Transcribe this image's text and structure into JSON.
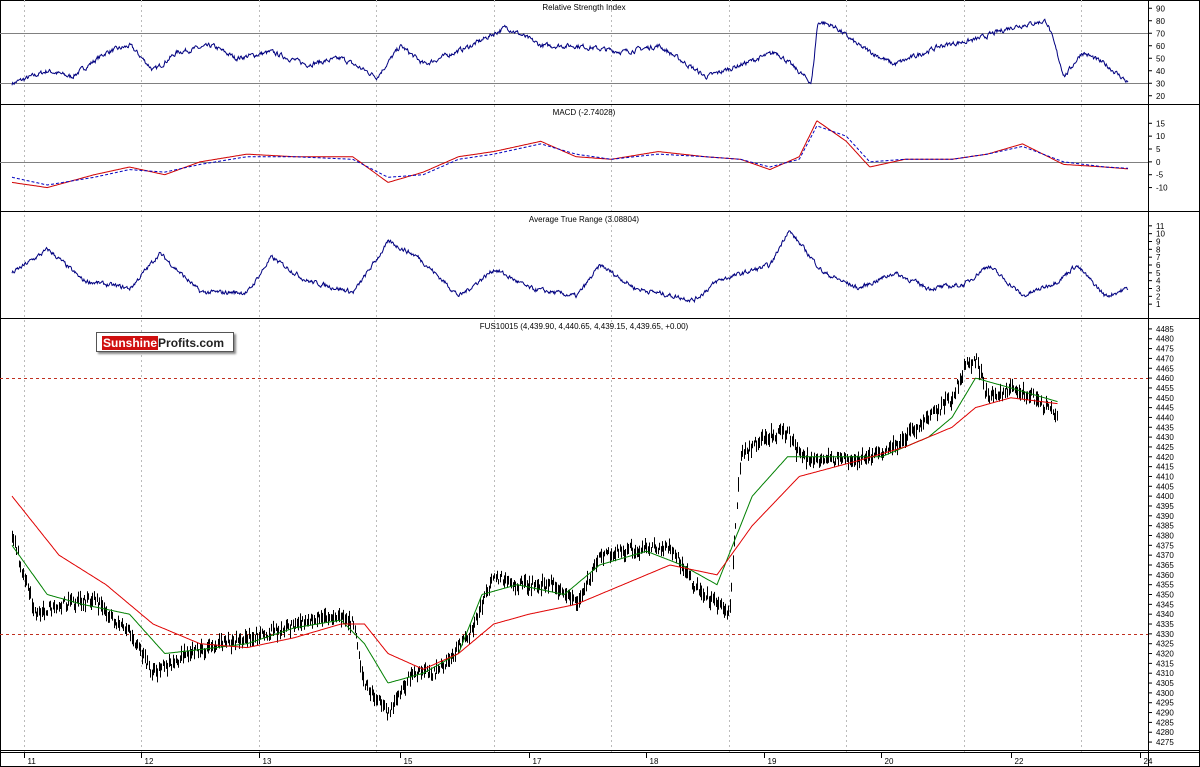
{
  "chart_data": [
    {
      "type": "line",
      "title": "Relative Strength Index",
      "ylim": [
        15,
        95
      ],
      "yticks": [
        "90",
        "80",
        "70",
        "60",
        "50",
        "40",
        "30",
        "20"
      ],
      "reference_lines": [
        70,
        30
      ],
      "series": [
        {
          "name": "RSI",
          "color": "#000080",
          "keypoints": [
            [
              0,
              30
            ],
            [
              0.3,
              40
            ],
            [
              0.5,
              35
            ],
            [
              0.8,
              55
            ],
            [
              1.0,
              60
            ],
            [
              1.2,
              40
            ],
            [
              1.4,
              55
            ],
            [
              1.7,
              60
            ],
            [
              1.9,
              50
            ],
            [
              2.2,
              55
            ],
            [
              2.5,
              45
            ],
            [
              2.8,
              50
            ],
            [
              3.1,
              35
            ],
            [
              3.3,
              60
            ],
            [
              3.5,
              45
            ],
            [
              3.9,
              60
            ],
            [
              4.2,
              75
            ],
            [
              4.5,
              60
            ],
            [
              4.8,
              60
            ],
            [
              5.2,
              55
            ],
            [
              5.5,
              60
            ],
            [
              5.9,
              35
            ],
            [
              6.2,
              45
            ],
            [
              6.5,
              55
            ],
            [
              6.8,
              30
            ],
            [
              6.85,
              80
            ],
            [
              7.0,
              75
            ],
            [
              7.2,
              60
            ],
            [
              7.5,
              45
            ],
            [
              7.9,
              60
            ],
            [
              8.2,
              65
            ],
            [
              8.5,
              75
            ],
            [
              8.8,
              80
            ],
            [
              8.95,
              35
            ],
            [
              9.1,
              55
            ],
            [
              9.3,
              45
            ],
            [
              9.5,
              30
            ]
          ]
        }
      ]
    },
    {
      "type": "line",
      "title": "MACD (-2.74028)",
      "ylim": [
        -16,
        19
      ],
      "yticks": [
        "15",
        "10",
        "5",
        "0",
        "-5",
        "-10"
      ],
      "reference_lines": [
        0
      ],
      "series": [
        {
          "name": "MACD",
          "color": "#d00000",
          "keypoints": [
            [
              0,
              -8
            ],
            [
              0.3,
              -10
            ],
            [
              0.7,
              -5
            ],
            [
              1.0,
              -2
            ],
            [
              1.3,
              -5
            ],
            [
              1.6,
              0
            ],
            [
              2.0,
              3
            ],
            [
              2.4,
              2
            ],
            [
              2.9,
              2
            ],
            [
              3.2,
              -8
            ],
            [
              3.5,
              -4
            ],
            [
              3.8,
              2
            ],
            [
              4.1,
              4
            ],
            [
              4.5,
              8
            ],
            [
              4.8,
              2
            ],
            [
              5.1,
              1
            ],
            [
              5.5,
              4
            ],
            [
              5.9,
              2
            ],
            [
              6.2,
              1
            ],
            [
              6.45,
              -3
            ],
            [
              6.7,
              2
            ],
            [
              6.85,
              16
            ],
            [
              7.1,
              8
            ],
            [
              7.3,
              -2
            ],
            [
              7.6,
              1
            ],
            [
              8.0,
              1
            ],
            [
              8.3,
              3
            ],
            [
              8.6,
              7
            ],
            [
              8.95,
              -1
            ],
            [
              9.3,
              -2
            ],
            [
              9.5,
              -2.74
            ]
          ]
        },
        {
          "name": "Signal",
          "color": "#0000c0",
          "dashed": true,
          "keypoints": [
            [
              0,
              -6
            ],
            [
              0.3,
              -9
            ],
            [
              0.7,
              -6
            ],
            [
              1.0,
              -3
            ],
            [
              1.3,
              -4
            ],
            [
              1.6,
              -1
            ],
            [
              2.0,
              2
            ],
            [
              2.4,
              2
            ],
            [
              2.9,
              1
            ],
            [
              3.2,
              -6
            ],
            [
              3.5,
              -5
            ],
            [
              3.8,
              1
            ],
            [
              4.1,
              3
            ],
            [
              4.5,
              7
            ],
            [
              4.8,
              3
            ],
            [
              5.1,
              1
            ],
            [
              5.5,
              3
            ],
            [
              5.9,
              2
            ],
            [
              6.2,
              1
            ],
            [
              6.45,
              -2
            ],
            [
              6.7,
              1
            ],
            [
              6.85,
              14
            ],
            [
              7.1,
              10
            ],
            [
              7.3,
              0
            ],
            [
              7.6,
              1
            ],
            [
              8.0,
              1
            ],
            [
              8.3,
              3
            ],
            [
              8.6,
              6
            ],
            [
              8.95,
              0
            ],
            [
              9.3,
              -2
            ],
            [
              9.5,
              -2.5
            ]
          ]
        }
      ]
    },
    {
      "type": "line",
      "title": "Average True Range (3.08804)",
      "ylim": [
        0,
        12
      ],
      "yticks": [
        "11",
        "10",
        "9",
        "8",
        "7",
        "6",
        "5",
        "4",
        "3",
        "2",
        "1"
      ],
      "series": [
        {
          "name": "ATR",
          "color": "#000080",
          "keypoints": [
            [
              0,
              5
            ],
            [
              0.3,
              8
            ],
            [
              0.6,
              4
            ],
            [
              1.0,
              3
            ],
            [
              1.25,
              7.5
            ],
            [
              1.6,
              2.5
            ],
            [
              2.0,
              2.5
            ],
            [
              2.2,
              7
            ],
            [
              2.5,
              4
            ],
            [
              2.9,
              2.5
            ],
            [
              3.2,
              9
            ],
            [
              3.45,
              7
            ],
            [
              3.8,
              2
            ],
            [
              4.1,
              5.5
            ],
            [
              4.4,
              3
            ],
            [
              4.8,
              2
            ],
            [
              5.0,
              6
            ],
            [
              5.3,
              3
            ],
            [
              5.8,
              1.5
            ],
            [
              6.0,
              4
            ],
            [
              6.45,
              6
            ],
            [
              6.6,
              10.5
            ],
            [
              6.9,
              5
            ],
            [
              7.2,
              3
            ],
            [
              7.5,
              5
            ],
            [
              7.8,
              3
            ],
            [
              8.1,
              3.5
            ],
            [
              8.3,
              6
            ],
            [
              8.6,
              2
            ],
            [
              8.9,
              4
            ],
            [
              9.05,
              6
            ],
            [
              9.3,
              2
            ],
            [
              9.5,
              3.09
            ]
          ]
        }
      ]
    },
    {
      "type": "line",
      "title": "FUS10015 (4,439.90, 4,440.65, 4,439.15, 4,439.65, +0.00)",
      "ylim": [
        4273,
        4488
      ],
      "yticks": [
        "4485",
        "4480",
        "4475",
        "4470",
        "4465",
        "4460",
        "4455",
        "4450",
        "4445",
        "4440",
        "4435",
        "4430",
        "4425",
        "4420",
        "4415",
        "4410",
        "4405",
        "4400",
        "4395",
        "4390",
        "4385",
        "4380",
        "4375",
        "4370",
        "4365",
        "4360",
        "4355",
        "4350",
        "4345",
        "4340",
        "4335",
        "4330",
        "4325",
        "4320",
        "4315",
        "4310",
        "4305",
        "4300",
        "4295",
        "4290",
        "4285",
        "4280",
        "4275"
      ],
      "reference_lines": [
        4460,
        4330
      ],
      "x_labels": [
        "11",
        "12",
        "13",
        "15",
        "17",
        "18",
        "19",
        "20",
        "22",
        "24"
      ],
      "series": [
        {
          "name": "Price",
          "color": "#000000",
          "keypoints": [
            [
              0,
              4380
            ],
            [
              0.2,
              4340
            ],
            [
              0.4,
              4345
            ],
            [
              0.7,
              4347
            ],
            [
              1.0,
              4330
            ],
            [
              1.2,
              4310
            ],
            [
              1.5,
              4320
            ],
            [
              1.8,
              4325
            ],
            [
              2.0,
              4328
            ],
            [
              2.3,
              4332
            ],
            [
              2.7,
              4340
            ],
            [
              2.9,
              4335
            ],
            [
              3.0,
              4305
            ],
            [
              3.2,
              4290
            ],
            [
              3.4,
              4310
            ],
            [
              3.6,
              4310
            ],
            [
              3.9,
              4330
            ],
            [
              4.1,
              4360
            ],
            [
              4.3,
              4355
            ],
            [
              4.6,
              4355
            ],
            [
              4.8,
              4345
            ],
            [
              5.0,
              4370
            ],
            [
              5.3,
              4373
            ],
            [
              5.6,
              4375
            ],
            [
              5.8,
              4355
            ],
            [
              6.0,
              4345
            ],
            [
              6.1,
              4340
            ],
            [
              6.2,
              4420
            ],
            [
              6.4,
              4430
            ],
            [
              6.6,
              4433
            ],
            [
              6.7,
              4420
            ],
            [
              7.0,
              4418
            ],
            [
              7.3,
              4420
            ],
            [
              7.5,
              4425
            ],
            [
              7.8,
              4440
            ],
            [
              8.0,
              4450
            ],
            [
              8.1,
              4465
            ],
            [
              8.2,
              4470
            ],
            [
              8.3,
              4450
            ],
            [
              8.5,
              4455
            ],
            [
              8.7,
              4450
            ],
            [
              8.9,
              4440
            ]
          ]
        },
        {
          "name": "Short MA",
          "color": "#008000",
          "keypoints": [
            [
              0,
              4375
            ],
            [
              0.3,
              4350
            ],
            [
              0.6,
              4345
            ],
            [
              1.0,
              4340
            ],
            [
              1.3,
              4320
            ],
            [
              1.6,
              4322
            ],
            [
              2.0,
              4325
            ],
            [
              2.4,
              4333
            ],
            [
              2.8,
              4337
            ],
            [
              3.0,
              4325
            ],
            [
              3.2,
              4305
            ],
            [
              3.5,
              4310
            ],
            [
              3.8,
              4320
            ],
            [
              4.0,
              4350
            ],
            [
              4.3,
              4355
            ],
            [
              4.7,
              4350
            ],
            [
              5.0,
              4365
            ],
            [
              5.4,
              4372
            ],
            [
              5.7,
              4365
            ],
            [
              6.0,
              4355
            ],
            [
              6.3,
              4400
            ],
            [
              6.6,
              4420
            ],
            [
              7.0,
              4420
            ],
            [
              7.4,
              4420
            ],
            [
              7.8,
              4430
            ],
            [
              8.0,
              4440
            ],
            [
              8.2,
              4460
            ],
            [
              8.5,
              4455
            ],
            [
              8.9,
              4448
            ]
          ]
        },
        {
          "name": "Long MA",
          "color": "#e00000",
          "keypoints": [
            [
              0,
              4400
            ],
            [
              0.4,
              4370
            ],
            [
              0.8,
              4355
            ],
            [
              1.2,
              4335
            ],
            [
              1.6,
              4325
            ],
            [
              2.0,
              4323
            ],
            [
              2.4,
              4328
            ],
            [
              2.8,
              4335
            ],
            [
              3.0,
              4335
            ],
            [
              3.2,
              4320
            ],
            [
              3.5,
              4312
            ],
            [
              3.8,
              4320
            ],
            [
              4.1,
              4335
            ],
            [
              4.4,
              4340
            ],
            [
              4.8,
              4345
            ],
            [
              5.2,
              4355
            ],
            [
              5.6,
              4365
            ],
            [
              6.0,
              4360
            ],
            [
              6.3,
              4385
            ],
            [
              6.7,
              4410
            ],
            [
              7.2,
              4418
            ],
            [
              7.6,
              4425
            ],
            [
              8.0,
              4435
            ],
            [
              8.2,
              4445
            ],
            [
              8.5,
              4450
            ],
            [
              8.9,
              4447
            ]
          ]
        }
      ]
    }
  ],
  "logo": {
    "part1": "Sunshine",
    "part2": "Profits.com"
  }
}
